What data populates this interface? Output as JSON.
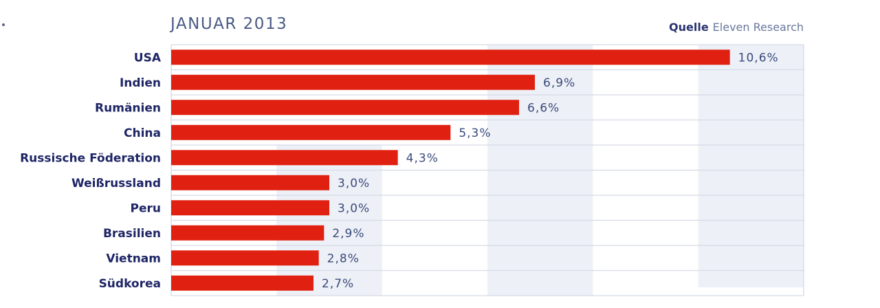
{
  "header": {
    "title": "JANUAR 2013",
    "source_label": "Quelle",
    "source_value": "Eleven Research"
  },
  "colors": {
    "bar": "#e02010",
    "band": "#edf0f6",
    "grid": "#d5dae6",
    "frame": "#d0d5e2"
  },
  "chart_data": {
    "type": "bar",
    "orientation": "horizontal",
    "title": "JANUAR 2013",
    "categories": [
      "USA",
      "Indien",
      "Rumänien",
      "China",
      "Russische Föderation",
      "Weißrussland",
      "Peru",
      "Brasilien",
      "Vietnam",
      "Südkorea"
    ],
    "values": [
      10.6,
      6.9,
      6.6,
      5.3,
      4.3,
      3.0,
      3.0,
      2.9,
      2.8,
      2.7
    ],
    "value_labels": [
      "10,6%",
      "6,9%",
      "6,6%",
      "5,3%",
      "4,3%",
      "3,0%",
      "3,0%",
      "2,9%",
      "2,8%",
      "2,7%"
    ],
    "xlim": [
      0,
      12
    ],
    "grid": true,
    "legend": "none"
  }
}
